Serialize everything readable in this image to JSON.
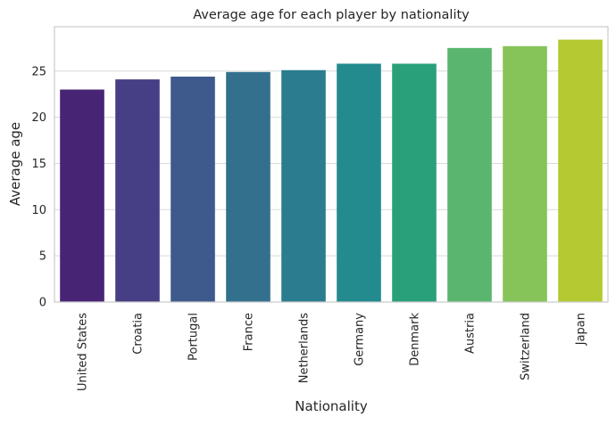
{
  "chart_data": {
    "type": "bar",
    "title": "Average age for each player by nationality",
    "xlabel": "Nationality",
    "ylabel": "Average age",
    "categories": [
      "United States",
      "Croatia",
      "Portugal",
      "France",
      "Netherlands",
      "Germany",
      "Denmark",
      "Austria",
      "Switzerland",
      "Japan"
    ],
    "values": [
      23.0,
      24.1,
      24.4,
      24.9,
      25.1,
      25.8,
      25.8,
      27.5,
      27.7,
      28.4
    ],
    "ylim": [
      0,
      29.8
    ],
    "yticks": [
      0,
      5,
      10,
      15,
      20,
      25
    ],
    "grid": "horizontal",
    "colors": [
      "#482475",
      "#463f85",
      "#3e5a8c",
      "#33708e",
      "#2a7c8e",
      "#238a8d",
      "#2aa07a",
      "#5ab56e",
      "#86c45a",
      "#b4c932"
    ]
  }
}
